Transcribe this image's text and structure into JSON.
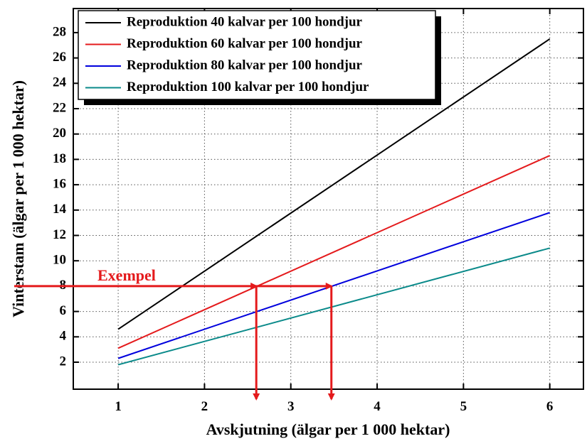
{
  "chart_data": {
    "type": "line",
    "x_label": "Avskjutning (älgar per 1 000 hektar)",
    "y_label": "Vinterstam (älgar per 1 000 hektar)",
    "xlim": [
      0.48,
      6.39
    ],
    "ylim": [
      -0.13,
      29.9
    ],
    "xticks": [
      1,
      2,
      3,
      4,
      5,
      6
    ],
    "yticks": [
      2,
      4,
      6,
      8,
      10,
      12,
      14,
      16,
      18,
      20,
      22,
      24,
      26,
      28
    ],
    "grid": true,
    "legend": "upper left",
    "x": [
      1,
      6
    ],
    "series": [
      {
        "name": "Reproduktion 40 kalvar per 100 hondjur",
        "color": "#000000",
        "values": [
          4.6,
          27.5
        ]
      },
      {
        "name": "Reproduktion 60 kalvar per 100 hondjur",
        "color": "#e41a1c",
        "values": [
          3.1,
          18.3
        ]
      },
      {
        "name": "Reproduktion 80 kalvar per 100 hondjur",
        "color": "#0000dd",
        "values": [
          2.3,
          13.8
        ]
      },
      {
        "name": "Reproduktion 100 kalvar per 100 hondjur",
        "color": "#0a8a8a",
        "values": [
          1.8,
          11.0
        ]
      }
    ],
    "example": {
      "label": "Exempel",
      "color": "#e41a1c",
      "y": 8,
      "x": [
        2.6,
        3.47
      ]
    }
  }
}
